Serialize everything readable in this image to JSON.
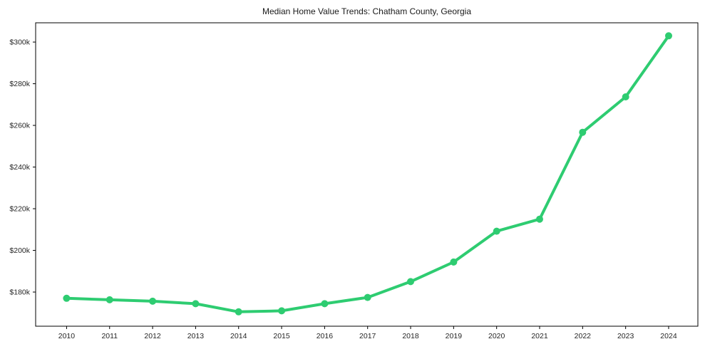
{
  "title": "Median Home Value Trends: Chatham County, Georgia",
  "chart_data": {
    "type": "line",
    "title": "Median Home Value Trends: Chatham County, Georgia",
    "series_name": "Median Home Value",
    "x": [
      2010,
      2011,
      2012,
      2013,
      2014,
      2015,
      2016,
      2017,
      2018,
      2019,
      2020,
      2021,
      2022,
      2023,
      2024
    ],
    "values": [
      177000,
      176300,
      175600,
      174400,
      170500,
      171000,
      174400,
      177400,
      185000,
      194400,
      209200,
      215000,
      256700,
      273700,
      303000
    ],
    "x_tick_labels": [
      "2010",
      "2011",
      "2012",
      "2013",
      "2014",
      "2015",
      "2016",
      "2017",
      "2018",
      "2019",
      "2020",
      "2021",
      "2022",
      "2023",
      "2024"
    ],
    "y_ticks": [
      180000,
      200000,
      220000,
      240000,
      260000,
      280000,
      300000
    ],
    "y_tick_labels": [
      "$180k",
      "$200k",
      "$220k",
      "$240k",
      "$260k",
      "$280k",
      "$300k"
    ],
    "xlabel": "",
    "ylabel": "",
    "xlim": [
      2009.28,
      2024.68
    ],
    "ylim": [
      163600,
      309250
    ],
    "grid": false,
    "legend_position": "none",
    "line_color": "#2ecc71",
    "marker": "circle",
    "marker_radius": 5,
    "line_width": 4,
    "spine_color": "#000000",
    "text_color": "#1a1a1a",
    "background_color": "#ffffff"
  }
}
